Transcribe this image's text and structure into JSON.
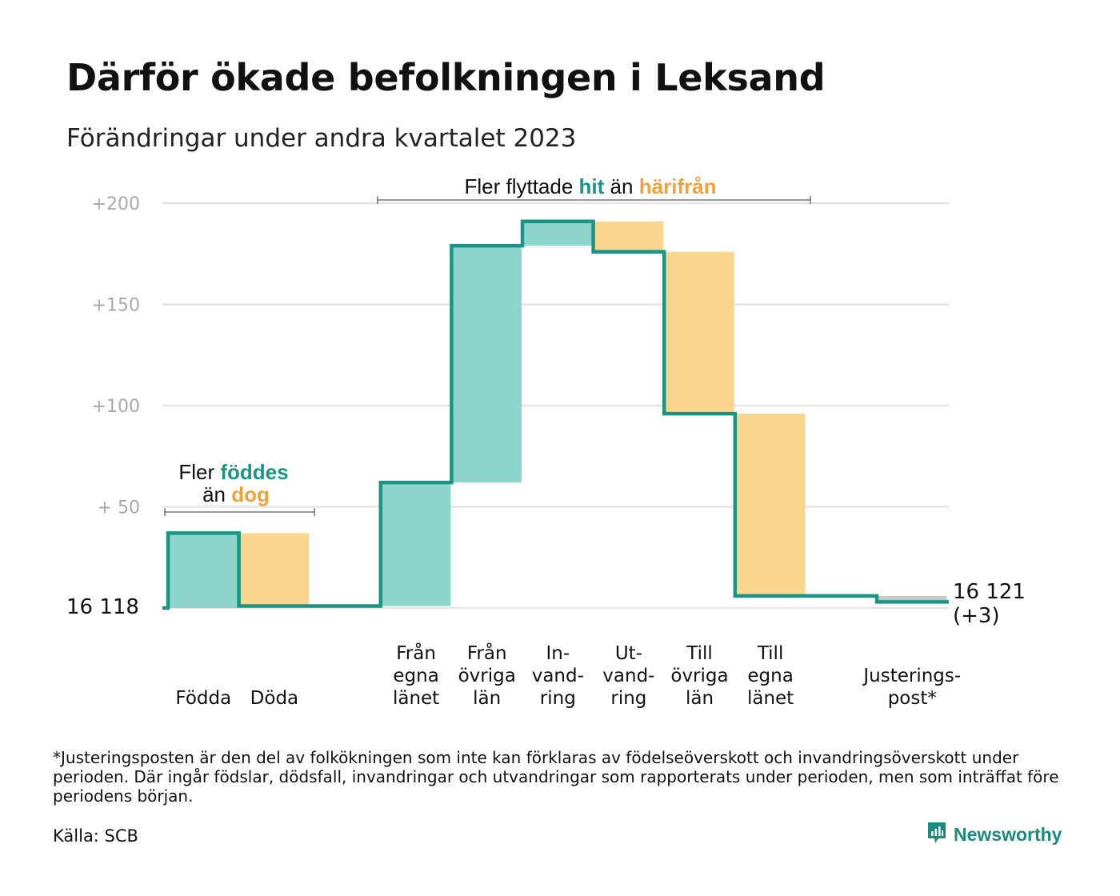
{
  "title": "Därför ökade befolkningen i Leksand",
  "subtitle": "Förändringar under andra kvartalet 2023",
  "colors": {
    "teal_line": "#1a9484",
    "teal_fill": "#8dd4cc",
    "orange_fill": "#fad58d",
    "orange_text": "#f2a23b",
    "teal_text": "#1a9484",
    "gray_fill": "#c8c8c8",
    "grid": "#e3e3e3",
    "tick_text": "#a8a8a8"
  },
  "annotations": {
    "births": {
      "line1_a": "Fler ",
      "line1_b": "föddes",
      "line2_a": "än ",
      "line2_b": "dog"
    },
    "migration": {
      "a": "Fler flyttade ",
      "b": "hit",
      "c": " än ",
      "d": "härifrån"
    }
  },
  "chart_data": {
    "type": "waterfall",
    "baseline_label": "16  118",
    "end_label": [
      "16 121",
      "(+3)"
    ],
    "y_ticks": [
      {
        "value": 200,
        "label": "+200"
      },
      {
        "value": 150,
        "label": "+150"
      },
      {
        "value": 100,
        "label": "+100"
      },
      {
        "value": 50,
        "label": "+  50"
      }
    ],
    "ylim": [
      0,
      200
    ],
    "grid": true,
    "steps": [
      {
        "category": [
          "Födda"
        ],
        "change": 37,
        "kind": "in"
      },
      {
        "category": [
          "Döda"
        ],
        "change": -36,
        "kind": "out"
      },
      {
        "category": [],
        "change": 0,
        "kind": "gap"
      },
      {
        "category": [
          "Från",
          "egna",
          "länet"
        ],
        "change": 61,
        "kind": "in"
      },
      {
        "category": [
          "Från",
          "övriga",
          "län"
        ],
        "change": 117,
        "kind": "in"
      },
      {
        "category": [
          "In-",
          "vand-",
          "ring"
        ],
        "change": 12,
        "kind": "in"
      },
      {
        "category": [
          "Ut-",
          "vand-",
          "ring"
        ],
        "change": -15,
        "kind": "out"
      },
      {
        "category": [
          "Till",
          "övriga",
          "län"
        ],
        "change": -80,
        "kind": "out"
      },
      {
        "category": [
          "Till",
          "egna",
          "länet"
        ],
        "change": -90,
        "kind": "out"
      },
      {
        "category": [],
        "change": 0,
        "kind": "gap"
      },
      {
        "category": [
          "Justerings-",
          "post*"
        ],
        "change": -3,
        "kind": "adjust"
      }
    ]
  },
  "footnote": "*Justeringsposten är den del av folkökningen som inte kan förklaras av födelseöverskott och invandringsöverskott under perioden. Där ingår födslar, dödsfall, invandringar och utvandringar som rapporterats under perioden, men som inträffat före periodens början.",
  "source": "Källa: SCB",
  "brand": "Newsworthy"
}
